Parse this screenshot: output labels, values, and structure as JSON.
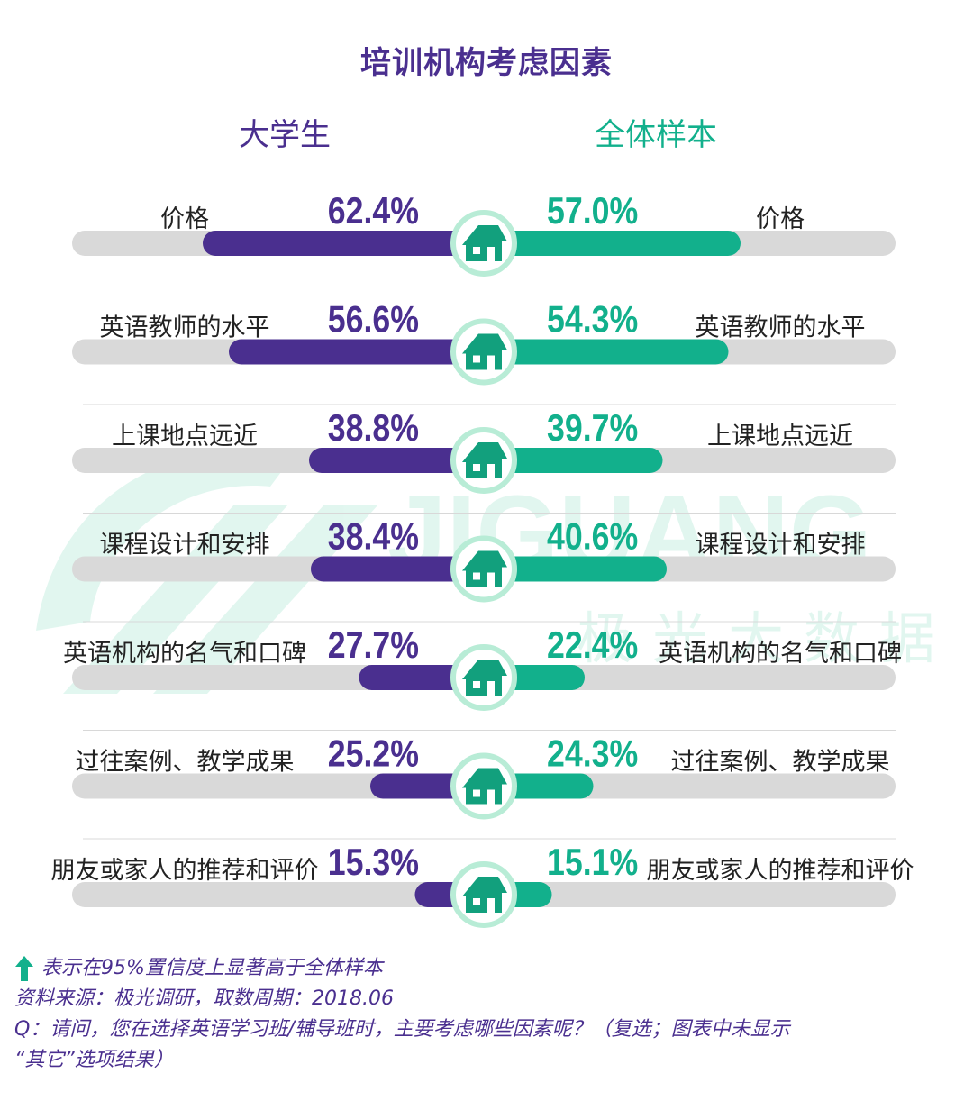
{
  "title": "培训机构考虑因素",
  "watermark": {
    "latin": "JIGUANG",
    "chinese": "极光大数据"
  },
  "chart_data": {
    "type": "bar",
    "layout": "mirrored-horizontal",
    "xlim": [
      0,
      100
    ],
    "unit": "%",
    "categories": [
      "价格",
      "英语教师的水平",
      "上课地点远近",
      "课程设计和安排",
      "英语机构的名气和口碑",
      "过往案例、教学成果",
      "朋友或家人的推荐和评价"
    ],
    "series": [
      {
        "name": "大学生",
        "values": [
          62.4,
          56.6,
          38.8,
          38.4,
          27.7,
          25.2,
          15.3
        ],
        "labels": [
          "62.4%",
          "56.6%",
          "38.8%",
          "38.4%",
          "27.7%",
          "25.2%",
          "15.3%"
        ]
      },
      {
        "name": "全体样本",
        "values": [
          57.0,
          54.3,
          39.7,
          40.6,
          22.4,
          24.3,
          15.1
        ],
        "labels": [
          "57.0%",
          "54.3%",
          "39.7%",
          "40.6%",
          "22.4%",
          "24.3%",
          "15.1%"
        ]
      }
    ]
  },
  "colors": {
    "left": "#4a2f8f",
    "right": "#12b08c",
    "track": "#d9d9d9",
    "divider": "#d8d8d8",
    "icon_ring": "#b8ecd6",
    "icon": "#12a07d"
  },
  "notes": {
    "legend": "表示在95%置信度上显著高于全体样本",
    "source": "资料来源：极光调研，取数周期：2018.06",
    "question_line1": "Q：请问，您在选择英语学习班/辅导班时，主要考虑哪些因素呢？（复选；图表中未显示",
    "question_line2": "“其它”选项结果）"
  }
}
